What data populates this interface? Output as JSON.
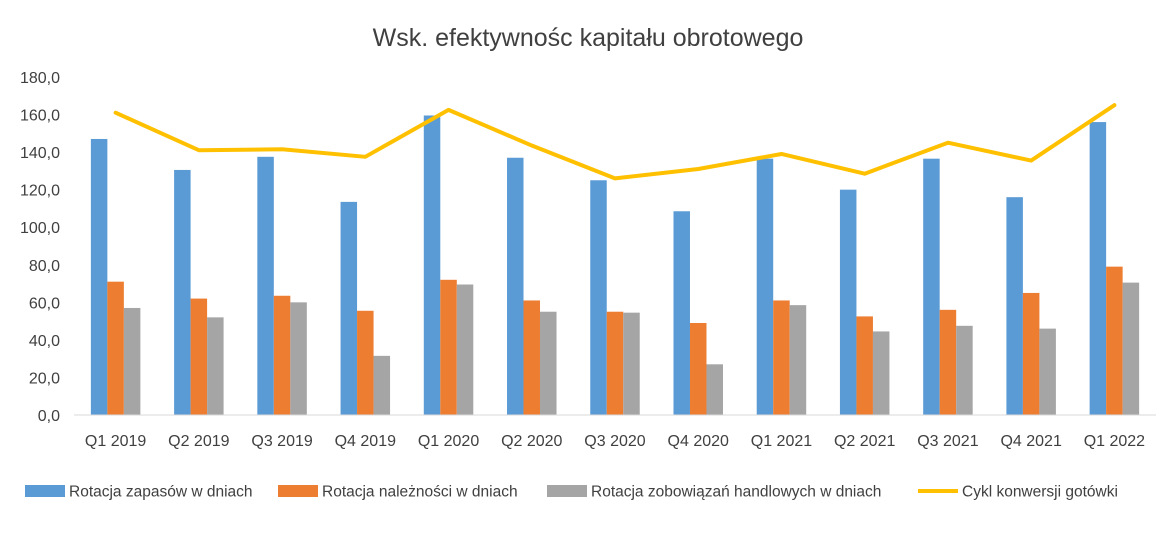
{
  "chart_data": {
    "type": "bar",
    "title": "Wsk. efektywnośc kapitału obrotowego",
    "categories": [
      "Q1 2019",
      "Q2 2019",
      "Q3 2019",
      "Q4 2019",
      "Q1 2020",
      "Q2 2020",
      "Q3 2020",
      "Q4 2020",
      "Q1 2021",
      "Q2 2021",
      "Q3 2021",
      "Q4 2021",
      "Q1 2022"
    ],
    "ylim": [
      0,
      180
    ],
    "yticks": [
      "0,0",
      "20,0",
      "40,0",
      "60,0",
      "80,0",
      "100,0",
      "120,0",
      "140,0",
      "160,0",
      "180,0"
    ],
    "grid": false,
    "legend_position": "bottom",
    "series": [
      {
        "name": "Rotacja zapasów w dniach",
        "type": "bar",
        "color": "#5B9BD5",
        "values": [
          147,
          130.5,
          137.5,
          113.5,
          159.5,
          137,
          125,
          108.5,
          136.5,
          120,
          136.5,
          116,
          156
        ]
      },
      {
        "name": "Rotacja należności w dniach",
        "type": "bar",
        "color": "#ED7D31",
        "values": [
          71,
          62,
          63.5,
          55.5,
          72,
          61,
          55,
          49,
          61,
          52.5,
          56,
          65,
          79
        ]
      },
      {
        "name": "Rotacja zobowiązań handlowych w dniach",
        "type": "bar",
        "color": "#A5A5A5",
        "values": [
          57,
          52,
          60,
          31.5,
          69.5,
          55,
          54.5,
          27,
          58.5,
          44.5,
          47.5,
          46,
          70.5
        ]
      },
      {
        "name": "Cykl konwersji gotówki",
        "type": "line",
        "color": "#FFC000",
        "values": [
          161,
          141,
          141.5,
          137.5,
          162.5,
          143.5,
          126,
          131,
          139,
          128.5,
          145,
          135.5,
          165
        ]
      }
    ]
  }
}
